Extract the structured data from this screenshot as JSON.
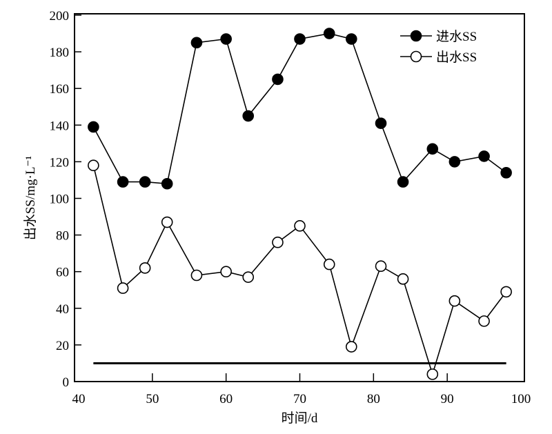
{
  "chart_data": {
    "type": "line",
    "title": "",
    "xlabel": "时间/d",
    "ylabel": "出水SS/mg·L⁻¹",
    "xlim": [
      40,
      100
    ],
    "ylim": [
      0,
      200
    ],
    "xticks": [
      40,
      50,
      60,
      70,
      80,
      90,
      100
    ],
    "yticks": [
      0,
      20,
      40,
      60,
      80,
      100,
      120,
      140,
      160,
      180,
      200
    ],
    "legend_position": "top-right",
    "x": [
      42,
      46,
      49,
      52,
      56,
      60,
      63,
      67,
      70,
      74,
      77,
      81,
      84,
      88,
      91,
      95,
      98
    ],
    "series": [
      {
        "name": "进水SS",
        "marker": "filled-circle",
        "values": [
          139,
          109,
          109,
          108,
          185,
          187,
          145,
          165,
          187,
          190,
          187,
          141,
          109,
          127,
          120,
          123,
          114
        ]
      },
      {
        "name": "出水SS",
        "marker": "open-circle",
        "values": [
          118,
          51,
          62,
          87,
          58,
          60,
          57,
          76,
          85,
          64,
          19,
          63,
          56,
          4,
          44,
          33,
          49
        ]
      }
    ],
    "reference_line": {
      "y": 10,
      "x_range": [
        42,
        98
      ]
    }
  }
}
